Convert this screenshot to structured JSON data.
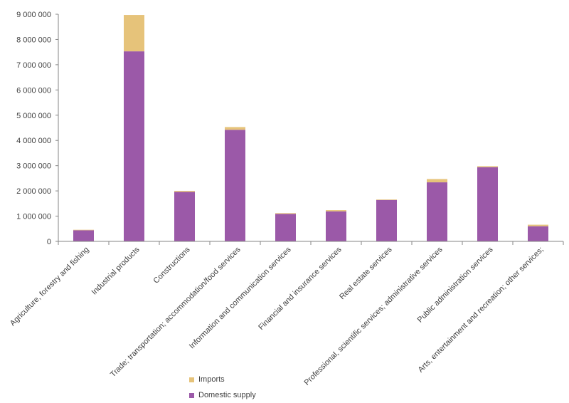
{
  "chart_data": {
    "type": "bar",
    "stacked": true,
    "categories": [
      "Agriculture, forestry and fishing",
      "Industrial products",
      "Constructions",
      "Trade; transportation; accommodation/food services",
      "Information and communication services",
      "Financial and insurance services",
      "Real estate services",
      "Professional, scientific services; administrative services",
      "Public administration services",
      "Arts, entertainment and recreation; other services;"
    ],
    "series": [
      {
        "name": "Domestic supply",
        "color": "#9b59a8",
        "values": [
          440000,
          7530000,
          1960000,
          4420000,
          1090000,
          1190000,
          1640000,
          2340000,
          2940000,
          600000
        ]
      },
      {
        "name": "Imports",
        "color": "#e6c37a",
        "values": [
          20000,
          1440000,
          40000,
          110000,
          30000,
          50000,
          20000,
          130000,
          40000,
          60000
        ]
      }
    ],
    "ylim": [
      0,
      9000000
    ],
    "yticks": [
      "0",
      "1 000 000",
      "2 000 000",
      "3 000 000",
      "4 000 000",
      "5 000 000",
      "6 000 000",
      "7 000 000",
      "8 000 000",
      "9 000 000"
    ],
    "grid": false,
    "legend_position": "bottom-center"
  }
}
